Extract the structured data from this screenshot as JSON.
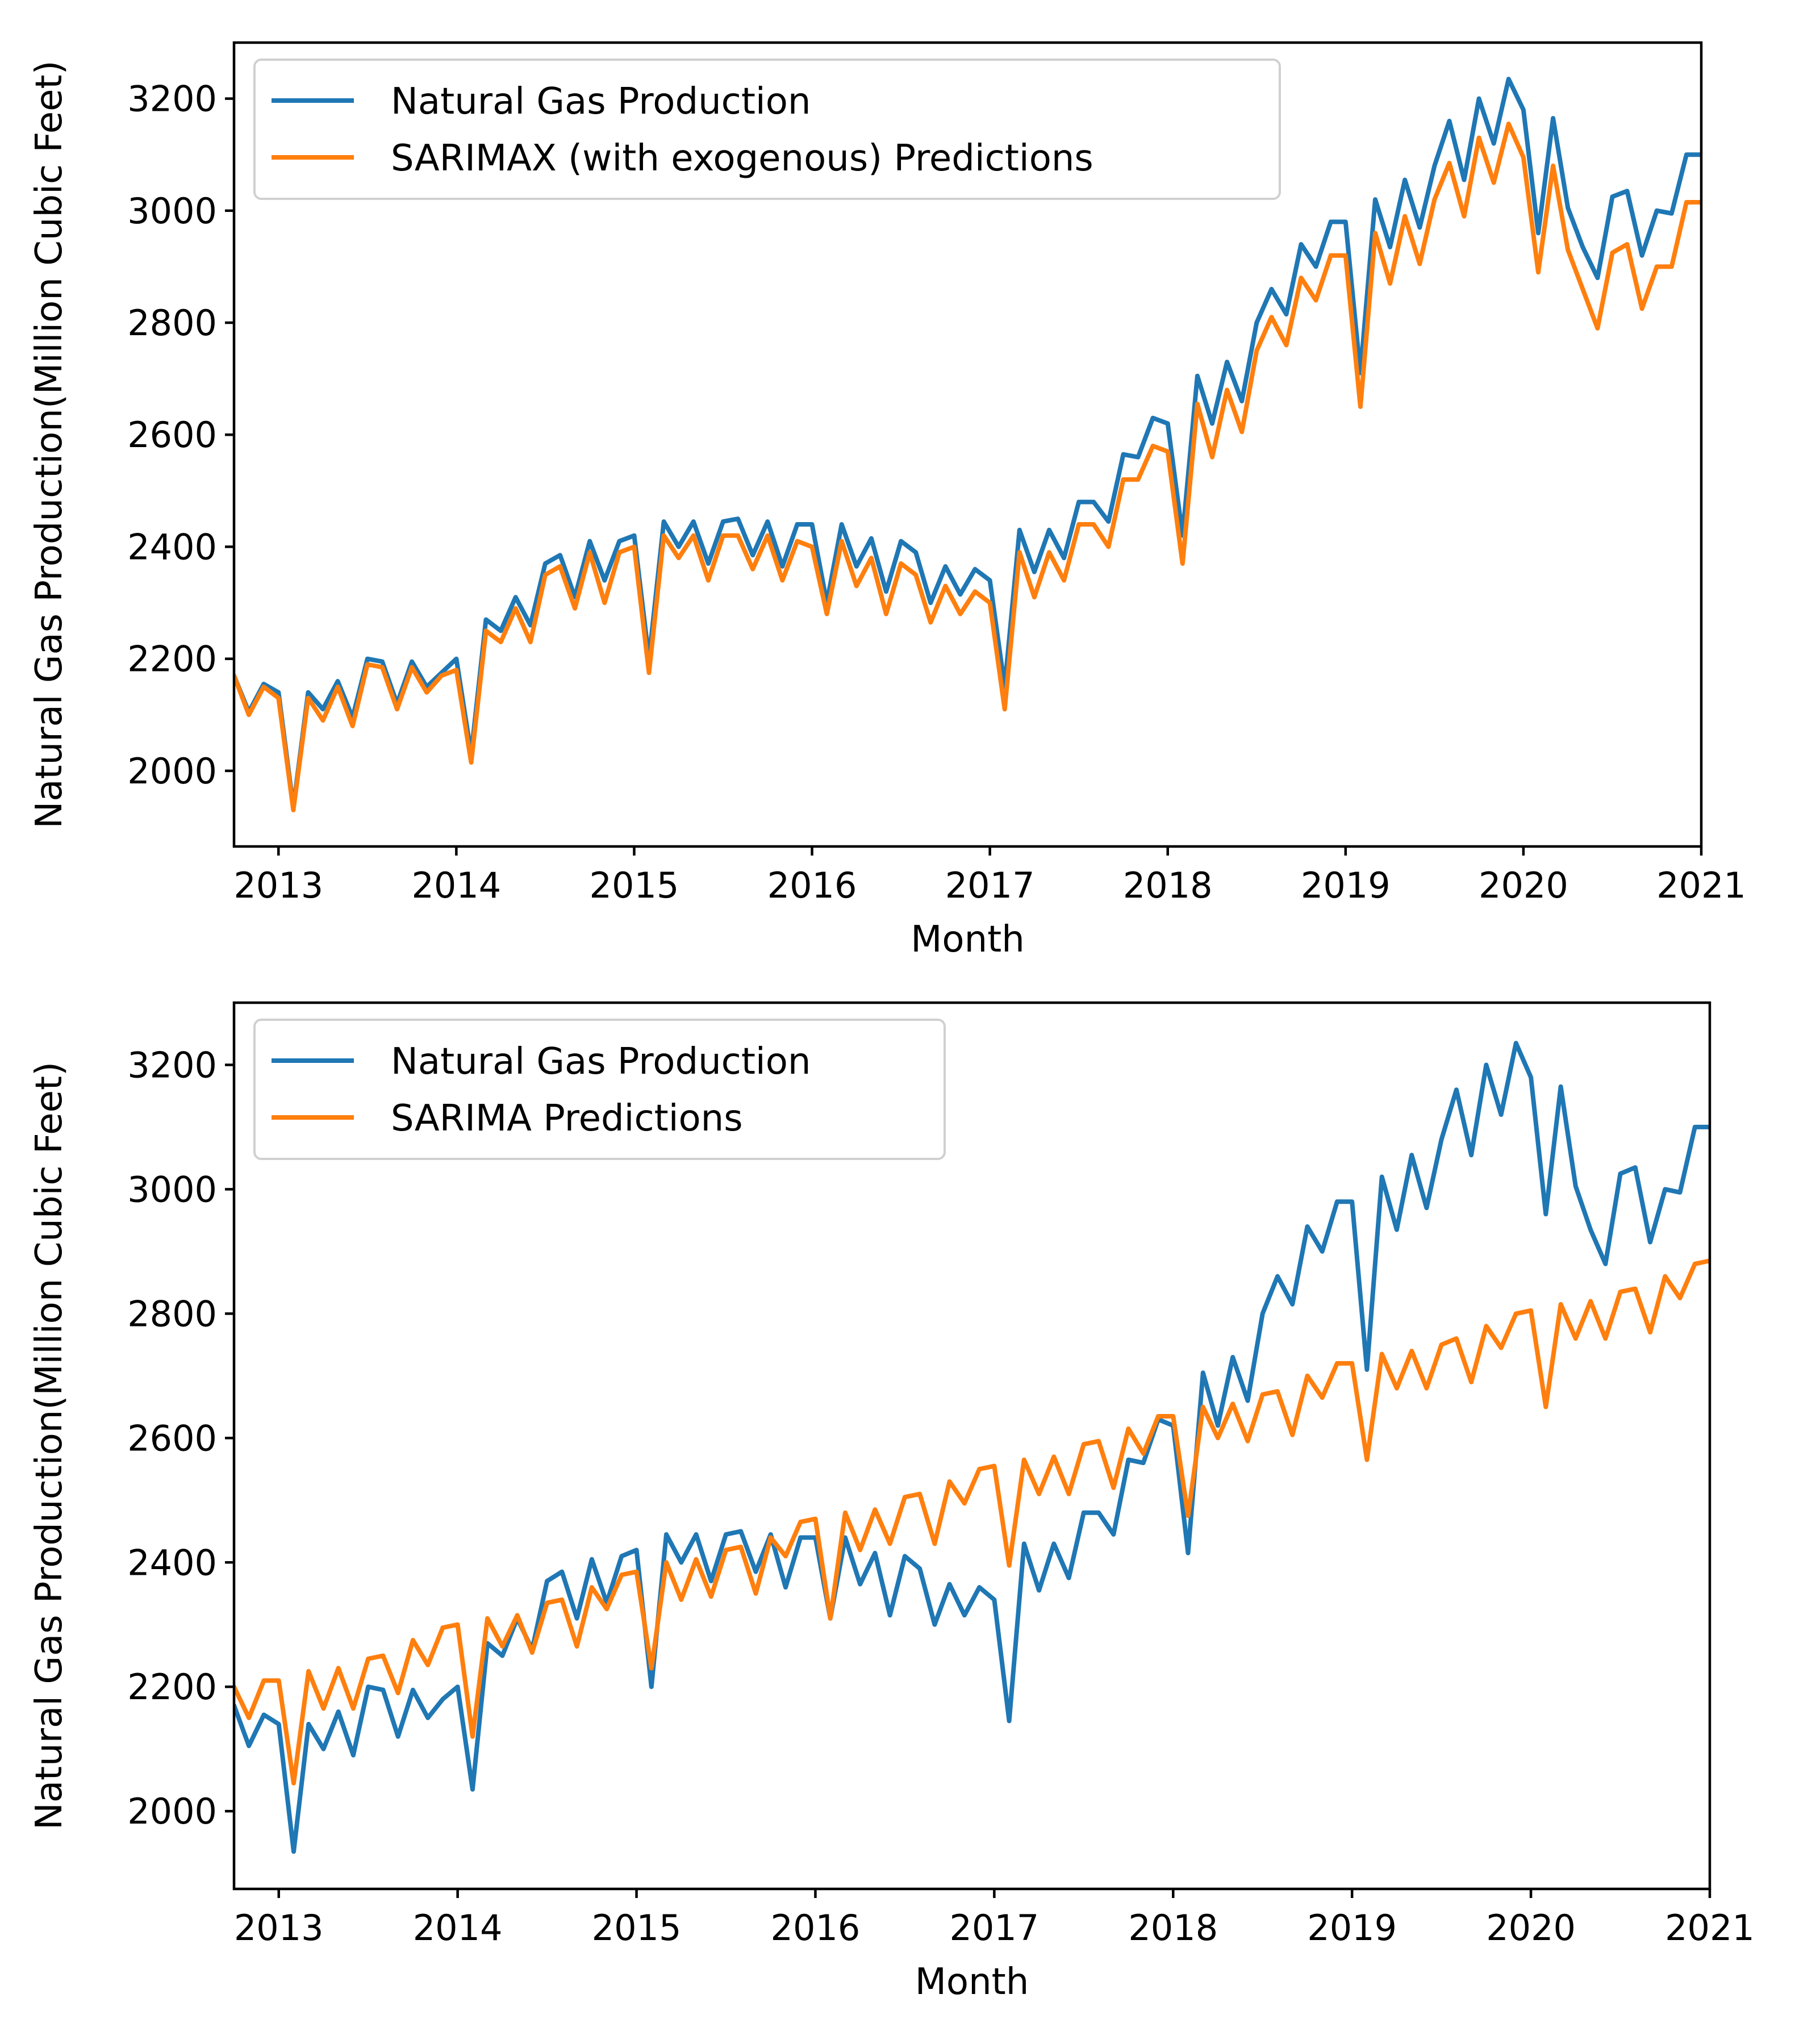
{
  "chart_data": [
    {
      "type": "line",
      "title": "",
      "xlabel": "Month",
      "ylabel": "Natural Gas Production(Million Cubic Feet)",
      "x_start": "2012-10",
      "x_step": "month",
      "xlim": [
        2012.75,
        2021.0
      ],
      "ylim": [
        1865,
        3300
      ],
      "x_ticks": [
        2013,
        2014,
        2015,
        2016,
        2017,
        2018,
        2019,
        2020,
        2021
      ],
      "x_tick_labels": [
        "2013",
        "2014",
        "2015",
        "2016",
        "2017",
        "2018",
        "2019",
        "2020",
        "2021"
      ],
      "y_ticks": [
        2000,
        2200,
        2400,
        2600,
        2800,
        3000,
        3200
      ],
      "y_tick_labels": [
        "2000",
        "2200",
        "2400",
        "2600",
        "2800",
        "3000",
        "3200"
      ],
      "legend_position": "top-left",
      "series": [
        {
          "name": "Natural Gas Production",
          "color": "#1f77b4",
          "values": [
            2170,
            2105,
            2155,
            2140,
            1935,
            2140,
            2110,
            2160,
            2095,
            2200,
            2195,
            2120,
            2195,
            2150,
            2175,
            2200,
            2030,
            2270,
            2250,
            2310,
            2260,
            2370,
            2385,
            2310,
            2410,
            2340,
            2410,
            2420,
            2200,
            2445,
            2400,
            2445,
            2370,
            2445,
            2450,
            2385,
            2445,
            2365,
            2440,
            2440,
            2300,
            2440,
            2365,
            2415,
            2320,
            2410,
            2390,
            2300,
            2365,
            2315,
            2360,
            2340,
            2150,
            2430,
            2355,
            2430,
            2380,
            2480,
            2480,
            2445,
            2565,
            2560,
            2630,
            2620,
            2420,
            2705,
            2620,
            2730,
            2660,
            2800,
            2860,
            2815,
            2940,
            2900,
            2980,
            2980,
            2710,
            3020,
            2935,
            3055,
            2970,
            3080,
            3160,
            3055,
            3200,
            3120,
            3235,
            3180,
            2960,
            3165,
            3005,
            2935,
            2880,
            3025,
            3035,
            2920,
            3000,
            2995,
            3100,
            3100
          ]
        },
        {
          "name": "SARIMAX (with exogenous) Predictions",
          "color": "#ff7f0e",
          "values": [
            2170,
            2100,
            2150,
            2130,
            1930,
            2130,
            2090,
            2150,
            2080,
            2190,
            2185,
            2110,
            2185,
            2140,
            2170,
            2180,
            2015,
            2250,
            2230,
            2290,
            2230,
            2350,
            2365,
            2290,
            2390,
            2300,
            2390,
            2400,
            2175,
            2420,
            2380,
            2420,
            2340,
            2420,
            2420,
            2360,
            2420,
            2340,
            2410,
            2400,
            2280,
            2410,
            2330,
            2380,
            2280,
            2370,
            2350,
            2265,
            2330,
            2280,
            2320,
            2300,
            2110,
            2390,
            2310,
            2390,
            2340,
            2440,
            2440,
            2400,
            2520,
            2520,
            2580,
            2570,
            2370,
            2655,
            2560,
            2680,
            2605,
            2750,
            2810,
            2760,
            2880,
            2840,
            2920,
            2920,
            2650,
            2960,
            2870,
            2990,
            2905,
            3020,
            3085,
            2990,
            3130,
            3050,
            3155,
            3095,
            2890,
            3080,
            2930,
            2860,
            2790,
            2925,
            2940,
            2825,
            2900,
            2900,
            3015,
            3015
          ]
        }
      ]
    },
    {
      "type": "line",
      "title": "",
      "xlabel": "Month",
      "ylabel": "Natural Gas Production(Million Cubic Feet)",
      "x_start": "2012-10",
      "x_step": "month",
      "xlim": [
        2012.75,
        2021.0
      ],
      "ylim": [
        1875,
        3300
      ],
      "x_ticks": [
        2013,
        2014,
        2015,
        2016,
        2017,
        2018,
        2019,
        2020,
        2021
      ],
      "x_tick_labels": [
        "2013",
        "2014",
        "2015",
        "2016",
        "2017",
        "2018",
        "2019",
        "2020",
        "2021"
      ],
      "y_ticks": [
        2000,
        2200,
        2400,
        2600,
        2800,
        3000,
        3200
      ],
      "y_tick_labels": [
        "2000",
        "2200",
        "2400",
        "2600",
        "2800",
        "3000",
        "3200"
      ],
      "legend_position": "top-left",
      "series": [
        {
          "name": "Natural Gas Production",
          "color": "#1f77b4",
          "values": [
            2170,
            2105,
            2155,
            2140,
            1935,
            2140,
            2100,
            2160,
            2090,
            2200,
            2195,
            2120,
            2195,
            2150,
            2180,
            2200,
            2035,
            2270,
            2250,
            2310,
            2260,
            2370,
            2385,
            2310,
            2405,
            2335,
            2410,
            2420,
            2200,
            2445,
            2400,
            2445,
            2370,
            2445,
            2450,
            2385,
            2445,
            2360,
            2440,
            2440,
            2310,
            2440,
            2365,
            2415,
            2315,
            2410,
            2390,
            2300,
            2365,
            2315,
            2360,
            2340,
            2145,
            2430,
            2355,
            2430,
            2375,
            2480,
            2480,
            2445,
            2565,
            2560,
            2630,
            2620,
            2415,
            2705,
            2620,
            2730,
            2660,
            2800,
            2860,
            2815,
            2940,
            2900,
            2980,
            2980,
            2710,
            3020,
            2935,
            3055,
            2970,
            3080,
            3160,
            3055,
            3200,
            3120,
            3235,
            3180,
            2960,
            3165,
            3005,
            2935,
            2880,
            3025,
            3035,
            2915,
            3000,
            2995,
            3100,
            3100
          ]
        },
        {
          "name": "SARIMA Predictions",
          "color": "#ff7f0e",
          "values": [
            2200,
            2150,
            2210,
            2210,
            2045,
            2225,
            2165,
            2230,
            2165,
            2245,
            2250,
            2190,
            2275,
            2235,
            2295,
            2300,
            2120,
            2310,
            2265,
            2315,
            2255,
            2335,
            2340,
            2265,
            2360,
            2325,
            2380,
            2385,
            2230,
            2400,
            2340,
            2405,
            2345,
            2420,
            2425,
            2350,
            2440,
            2410,
            2465,
            2470,
            2310,
            2480,
            2420,
            2485,
            2430,
            2505,
            2510,
            2430,
            2530,
            2495,
            2550,
            2555,
            2395,
            2565,
            2510,
            2570,
            2510,
            2590,
            2595,
            2520,
            2615,
            2575,
            2635,
            2635,
            2475,
            2650,
            2600,
            2655,
            2595,
            2670,
            2675,
            2605,
            2700,
            2665,
            2720,
            2720,
            2565,
            2735,
            2680,
            2740,
            2680,
            2750,
            2760,
            2690,
            2780,
            2745,
            2800,
            2805,
            2650,
            2815,
            2760,
            2820,
            2760,
            2835,
            2840,
            2770,
            2860,
            2825,
            2880,
            2885
          ]
        }
      ]
    }
  ]
}
